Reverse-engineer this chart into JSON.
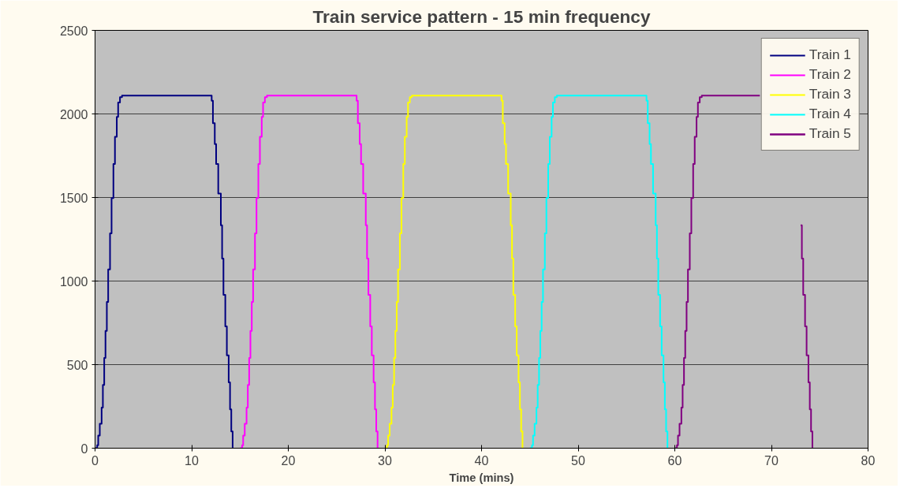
{
  "chart_data": {
    "type": "step",
    "title": "Train service pattern - 15 min frequency",
    "xlabel": "Time (mins)",
    "xlim": [
      0,
      80
    ],
    "xticks": [
      0,
      10,
      20,
      30,
      40,
      50,
      60,
      70,
      80
    ],
    "ylim": [
      0,
      2500
    ],
    "yticks": [
      0,
      500,
      1000,
      1500,
      2000,
      2500
    ],
    "grid": "y",
    "legend": "top right",
    "marker": "none",
    "line_style": "solid",
    "series": [
      {
        "name": "Train 1",
        "color": "#000080",
        "x": [
          0,
          0.22,
          0.33,
          0.49,
          0.68,
          0.81,
          0.95,
          1.08,
          1.22,
          1.36,
          1.55,
          1.71,
          1.9,
          2.06,
          2.25,
          2.39,
          2.58,
          2.79,
          12.07,
          12.2,
          12.39,
          12.53,
          12.75,
          13.02,
          13.15,
          13.29,
          13.48,
          13.64,
          13.83,
          13.97,
          14.1,
          14.24
        ],
        "values": [
          0,
          18,
          76,
          146,
          243,
          378,
          540,
          702,
          875,
          1070,
          1285,
          1496,
          1701,
          1863,
          1982,
          2068,
          2100,
          2110,
          2079,
          1944,
          1820,
          1701,
          1523,
          1334,
          1134,
          918,
          729,
          556,
          394,
          232,
          100,
          0
        ]
      },
      {
        "name": "Train 2",
        "color": "#ff00ff",
        "x": [
          15,
          15.22,
          15.33,
          15.49,
          15.68,
          15.81,
          15.95,
          16.08,
          16.22,
          16.36,
          16.55,
          16.71,
          16.9,
          17.06,
          17.25,
          17.39,
          17.58,
          17.79,
          27.07,
          27.2,
          27.39,
          27.53,
          27.75,
          28.02,
          28.15,
          28.29,
          28.48,
          28.64,
          28.83,
          28.97,
          29.1,
          29.24
        ],
        "values": [
          0,
          18,
          76,
          146,
          243,
          378,
          540,
          702,
          875,
          1070,
          1285,
          1496,
          1701,
          1863,
          1982,
          2068,
          2100,
          2110,
          2079,
          1944,
          1820,
          1701,
          1523,
          1334,
          1134,
          918,
          729,
          556,
          394,
          232,
          100,
          0
        ]
      },
      {
        "name": "Train 3",
        "color": "#ffff00",
        "x": [
          30,
          30.22,
          30.33,
          30.49,
          30.68,
          30.81,
          30.95,
          31.08,
          31.22,
          31.36,
          31.55,
          31.71,
          31.9,
          32.06,
          32.25,
          32.39,
          32.58,
          32.79,
          42.07,
          42.2,
          42.39,
          42.53,
          42.75,
          43.02,
          43.15,
          43.29,
          43.48,
          43.64,
          43.83,
          43.97,
          44.1,
          44.24
        ],
        "values": [
          0,
          18,
          76,
          146,
          243,
          378,
          540,
          702,
          875,
          1070,
          1285,
          1496,
          1701,
          1863,
          1982,
          2068,
          2100,
          2110,
          2079,
          1944,
          1820,
          1701,
          1523,
          1334,
          1134,
          918,
          729,
          556,
          394,
          232,
          100,
          0
        ]
      },
      {
        "name": "Train 4",
        "color": "#00ffff",
        "x": [
          45,
          45.22,
          45.33,
          45.49,
          45.68,
          45.81,
          45.95,
          46.08,
          46.22,
          46.36,
          46.55,
          46.71,
          46.9,
          47.06,
          47.25,
          47.39,
          47.58,
          47.79,
          57.07,
          57.2,
          57.39,
          57.53,
          57.75,
          58.02,
          58.15,
          58.29,
          58.48,
          58.64,
          58.83,
          58.97,
          59.1,
          59.24
        ],
        "values": [
          0,
          18,
          76,
          146,
          243,
          378,
          540,
          702,
          875,
          1070,
          1285,
          1496,
          1701,
          1863,
          1982,
          2068,
          2100,
          2110,
          2079,
          1944,
          1820,
          1701,
          1523,
          1334,
          1134,
          918,
          729,
          556,
          394,
          232,
          100,
          0
        ]
      },
      {
        "name": "Train 5",
        "color": "#800080",
        "x": [
          60,
          60.22,
          60.33,
          60.49,
          60.68,
          60.81,
          60.95,
          61.08,
          61.22,
          61.36,
          61.55,
          61.71,
          61.9,
          62.06,
          62.25,
          62.39,
          62.58,
          62.79,
          68.8,
          72.07,
          72.2,
          72.39,
          72.53,
          72.75,
          73.02,
          73.15,
          73.29,
          73.48,
          73.64,
          73.83,
          73.97,
          74.1,
          74.24
        ],
        "values": [
          0,
          18,
          76,
          146,
          243,
          378,
          540,
          702,
          875,
          1070,
          1285,
          1496,
          1701,
          1863,
          1982,
          2068,
          2100,
          2110,
          2110,
          null,
          null,
          null,
          null,
          null,
          1334,
          1134,
          918,
          729,
          556,
          394,
          232,
          100,
          0
        ]
      }
    ]
  }
}
